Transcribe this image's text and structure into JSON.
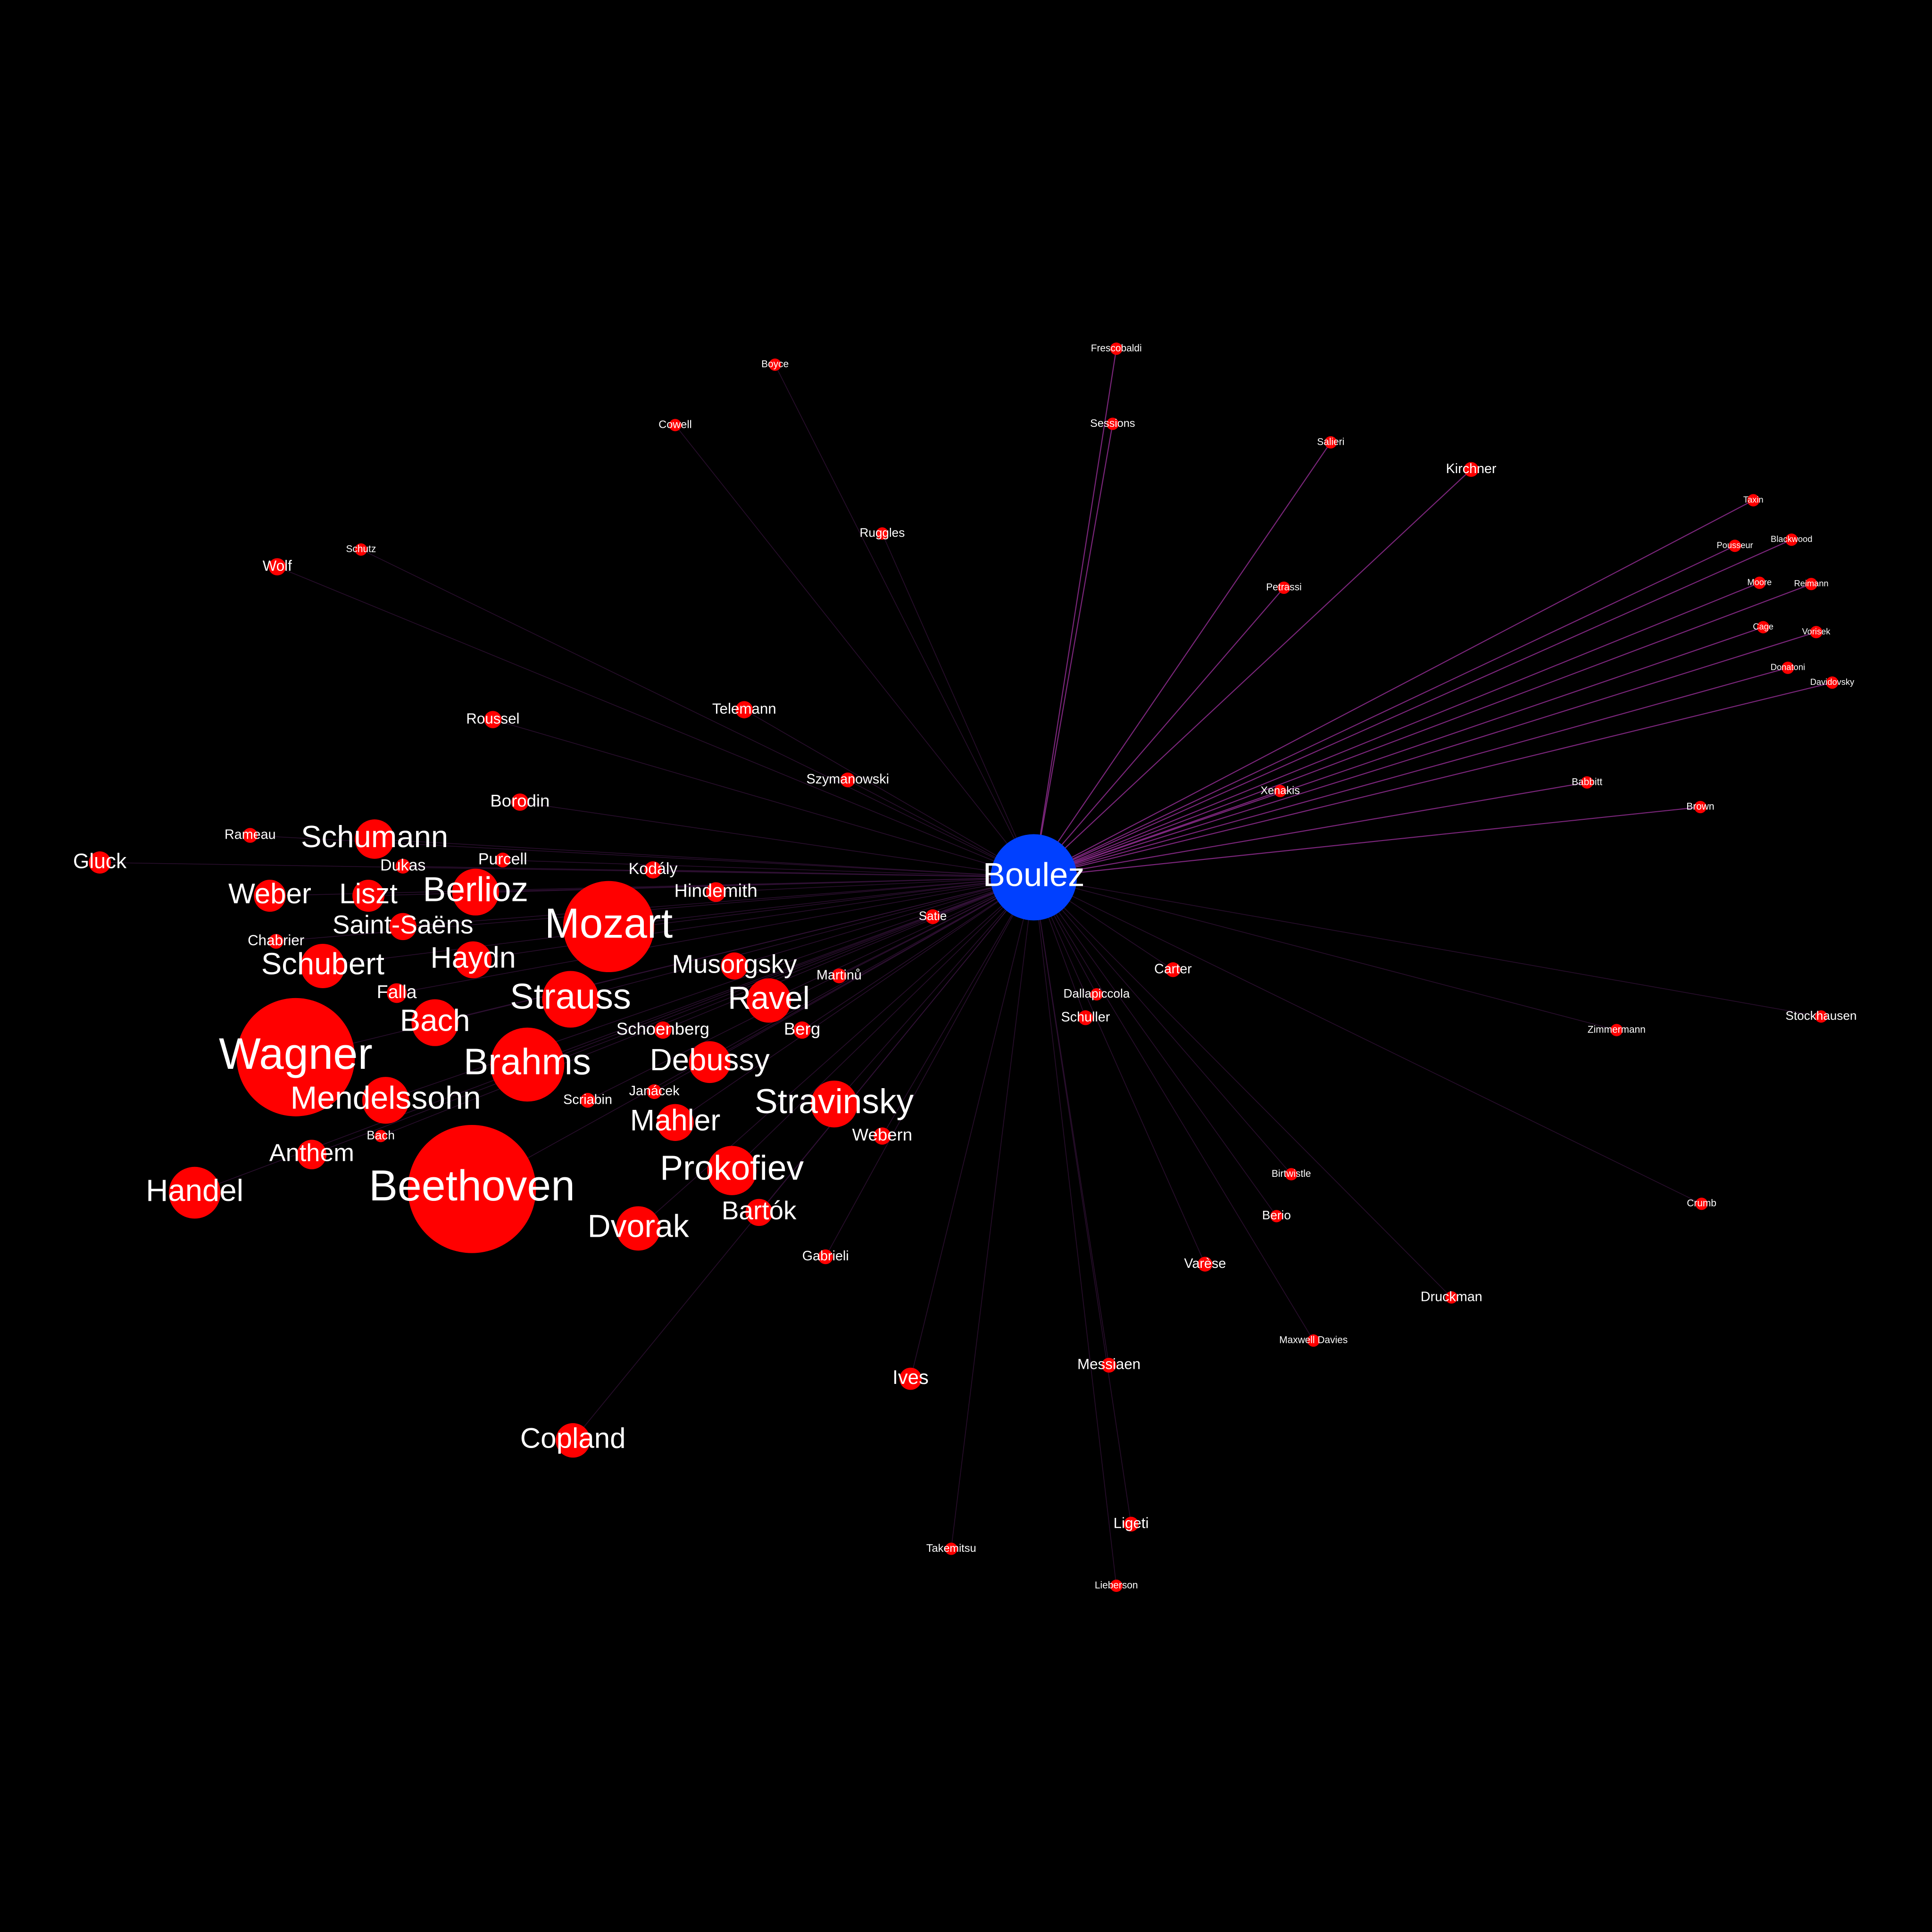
{
  "colors": {
    "background": "#000000",
    "hub_node": "#0040ff",
    "node": "#ff0000",
    "edge_strong": "#8a2a8a",
    "edge_weak": "#3a1440",
    "label": "#ffffff"
  },
  "hub": {
    "name": "Boulez"
  },
  "nodes": [
    {
      "name": "Beethoven",
      "weight": 10
    },
    {
      "name": "Wagner",
      "weight": 9
    },
    {
      "name": "Mozart",
      "weight": 7
    },
    {
      "name": "Brahms",
      "weight": 5.5
    },
    {
      "name": "Handel",
      "weight": 4
    },
    {
      "name": "Strauss",
      "weight": 4.5
    },
    {
      "name": "Bach",
      "weight": 3.8
    },
    {
      "name": "Mendelssohn",
      "weight": 3.8
    },
    {
      "name": "Berlioz",
      "weight": 3.8
    },
    {
      "name": "Dvorak",
      "weight": 3.5
    },
    {
      "name": "Prokofiev",
      "weight": 4
    },
    {
      "name": "Stravinsky",
      "weight": 3.8
    },
    {
      "name": "Ravel",
      "weight": 3.5
    },
    {
      "name": "Schubert",
      "weight": 3.5
    },
    {
      "name": "Debussy",
      "weight": 3.4
    },
    {
      "name": "Schumann",
      "weight": 3.2
    },
    {
      "name": "Mahler",
      "weight": 3
    },
    {
      "name": "Haydn",
      "weight": 3
    },
    {
      "name": "Copland",
      "weight": 2.8
    },
    {
      "name": "Weber",
      "weight": 2.6
    },
    {
      "name": "Liszt",
      "weight": 2.6
    },
    {
      "name": "Anthem",
      "weight": 2.4
    },
    {
      "name": "Saint-Saëns",
      "weight": 2.2
    },
    {
      "name": "Bartók",
      "weight": 2.2
    },
    {
      "name": "Musorgsky",
      "weight": 2.2
    },
    {
      "name": "Gluck",
      "weight": 1.8
    },
    {
      "name": "Falla",
      "weight": 1.6
    },
    {
      "name": "Ives",
      "weight": 1.8
    },
    {
      "name": "Hindemith",
      "weight": 1.6
    },
    {
      "name": "Kodály",
      "weight": 1.5
    },
    {
      "name": "Schoenberg",
      "weight": 1.5
    },
    {
      "name": "Webern",
      "weight": 1.4
    },
    {
      "name": "Berg",
      "weight": 1.4
    },
    {
      "name": "Borodin",
      "weight": 1.4
    },
    {
      "name": "Dukas",
      "weight": 1.3
    },
    {
      "name": "Purcell",
      "weight": 1.3
    },
    {
      "name": "Chabrier",
      "weight": 1.2
    },
    {
      "name": "Rameau",
      "weight": 1.2
    },
    {
      "name": "Scriabin",
      "weight": 1.2
    },
    {
      "name": "Janácek",
      "weight": 1.2
    },
    {
      "name": "Bach",
      "weight": 1.1
    },
    {
      "name": "Martinů",
      "weight": 1.2
    },
    {
      "name": "Gabrieli",
      "weight": 1.2
    },
    {
      "name": "Roussel",
      "weight": 1.3
    },
    {
      "name": "Telemann",
      "weight": 1.3
    },
    {
      "name": "Szymanowski",
      "weight": 1.2
    },
    {
      "name": "Satie",
      "weight": 1.2
    },
    {
      "name": "Wolf",
      "weight": 1.3
    },
    {
      "name": "Schutz",
      "weight": 1
    },
    {
      "name": "Boyce",
      "weight": 1
    },
    {
      "name": "Cowell",
      "weight": 1.1
    },
    {
      "name": "Ruggles",
      "weight": 1.1
    },
    {
      "name": "Frescobaldi",
      "weight": 1
    },
    {
      "name": "Sessions",
      "weight": 1.1
    },
    {
      "name": "Salieri",
      "weight": 1
    },
    {
      "name": "Kirchner",
      "weight": 1.2
    },
    {
      "name": "Petrassi",
      "weight": 1
    },
    {
      "name": "Taxin",
      "weight": 0.9
    },
    {
      "name": "Pousseur",
      "weight": 0.9
    },
    {
      "name": "Blackwood",
      "weight": 0.9
    },
    {
      "name": "Moore",
      "weight": 0.9
    },
    {
      "name": "Reimann",
      "weight": 0.9
    },
    {
      "name": "Cage",
      "weight": 0.9
    },
    {
      "name": "Vorisek",
      "weight": 0.9
    },
    {
      "name": "Donatoni",
      "weight": 0.9
    },
    {
      "name": "Davidovsky",
      "weight": 0.9
    },
    {
      "name": "Xenakis",
      "weight": 1.1
    },
    {
      "name": "Babbitt",
      "weight": 1
    },
    {
      "name": "Brown",
      "weight": 1
    },
    {
      "name": "Carter",
      "weight": 1.2
    },
    {
      "name": "Dallapiccola",
      "weight": 1.1
    },
    {
      "name": "Schuller",
      "weight": 1.2
    },
    {
      "name": "Zimmermann",
      "weight": 1
    },
    {
      "name": "Stockhausen",
      "weight": 1.1
    },
    {
      "name": "Crumb",
      "weight": 1
    },
    {
      "name": "Birtwistle",
      "weight": 1
    },
    {
      "name": "Berio",
      "weight": 1.1
    },
    {
      "name": "Varèse",
      "weight": 1.2
    },
    {
      "name": "Druckman",
      "weight": 1.1
    },
    {
      "name": "Maxwell Davies",
      "weight": 1
    },
    {
      "name": "Messiaen",
      "weight": 1.3
    },
    {
      "name": "Ligeti",
      "weight": 1.3
    },
    {
      "name": "Takemitsu",
      "weight": 1.1
    },
    {
      "name": "Lieberson",
      "weight": 1
    }
  ]
}
